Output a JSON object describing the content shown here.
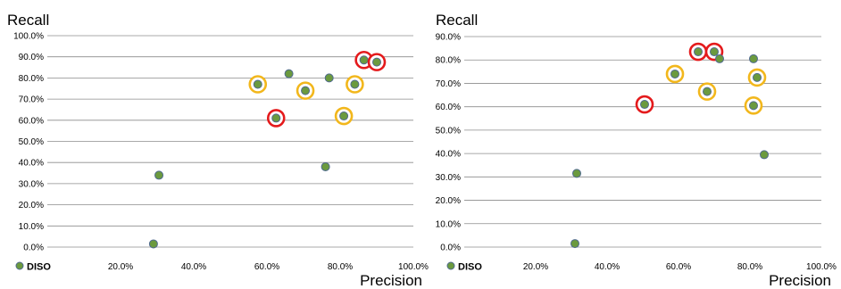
{
  "colors": {
    "point_fill": "#6b9a3e",
    "point_stroke": "#4f6a8f",
    "ring_red": "#e41a1c",
    "ring_yellow": "#f2b71c",
    "grid": "#8c8c8c",
    "text": "#000000"
  },
  "chart_data": [
    {
      "type": "scatter",
      "xlabel": "Precision",
      "ylabel": "Recall",
      "x_ticks": [
        "20.0%",
        "40.0%",
        "60.0%",
        "80.0%",
        "100.0%"
      ],
      "y_ticks": [
        "0.0%",
        "10.0%",
        "20.0%",
        "30.0%",
        "40.0%",
        "50.0%",
        "60.0%",
        "70.0%",
        "80.0%",
        "90.0%",
        "100.0%"
      ],
      "xlim": [
        0,
        100
      ],
      "ylim": [
        0,
        100
      ],
      "grid": true,
      "legend": "bottom-left",
      "series": [
        {
          "name": "DISO",
          "points": [
            {
              "x": 29,
              "y": 1.5,
              "ring": "none"
            },
            {
              "x": 30.5,
              "y": 34,
              "ring": "none"
            },
            {
              "x": 57.5,
              "y": 77,
              "ring": "yellow"
            },
            {
              "x": 62.5,
              "y": 61,
              "ring": "red"
            },
            {
              "x": 66,
              "y": 82,
              "ring": "none"
            },
            {
              "x": 70.5,
              "y": 74,
              "ring": "yellow"
            },
            {
              "x": 76,
              "y": 38,
              "ring": "none"
            },
            {
              "x": 77,
              "y": 80,
              "ring": "none"
            },
            {
              "x": 81,
              "y": 62,
              "ring": "yellow"
            },
            {
              "x": 84,
              "y": 77,
              "ring": "yellow"
            },
            {
              "x": 86.5,
              "y": 88.5,
              "ring": "red"
            },
            {
              "x": 90,
              "y": 87.5,
              "ring": "red"
            }
          ]
        }
      ]
    },
    {
      "type": "scatter",
      "xlabel": "Precision",
      "ylabel": "Recall",
      "x_ticks": [
        "20.0%",
        "40.0%",
        "60.0%",
        "80.0%",
        "100.0%"
      ],
      "y_ticks": [
        "0.0%",
        "10.0%",
        "20.0%",
        "30.0%",
        "40.0%",
        "50.0%",
        "60.0%",
        "70.0%",
        "80.0%",
        "90.0%"
      ],
      "xlim": [
        0,
        100
      ],
      "ylim": [
        0,
        90
      ],
      "grid": true,
      "legend": "bottom-left",
      "series": [
        {
          "name": "DISO",
          "points": [
            {
              "x": 31,
              "y": 1.5,
              "ring": "none"
            },
            {
              "x": 31.5,
              "y": 31.5,
              "ring": "none"
            },
            {
              "x": 50.5,
              "y": 61,
              "ring": "red"
            },
            {
              "x": 59,
              "y": 74,
              "ring": "yellow"
            },
            {
              "x": 65.5,
              "y": 83.5,
              "ring": "red"
            },
            {
              "x": 68,
              "y": 66.5,
              "ring": "yellow"
            },
            {
              "x": 70,
              "y": 83.5,
              "ring": "red"
            },
            {
              "x": 71.5,
              "y": 80.5,
              "ring": "none"
            },
            {
              "x": 81,
              "y": 80.5,
              "ring": "none"
            },
            {
              "x": 81,
              "y": 60.5,
              "ring": "yellow"
            },
            {
              "x": 82,
              "y": 72.5,
              "ring": "yellow"
            },
            {
              "x": 84,
              "y": 39.5,
              "ring": "none"
            }
          ]
        }
      ]
    }
  ]
}
